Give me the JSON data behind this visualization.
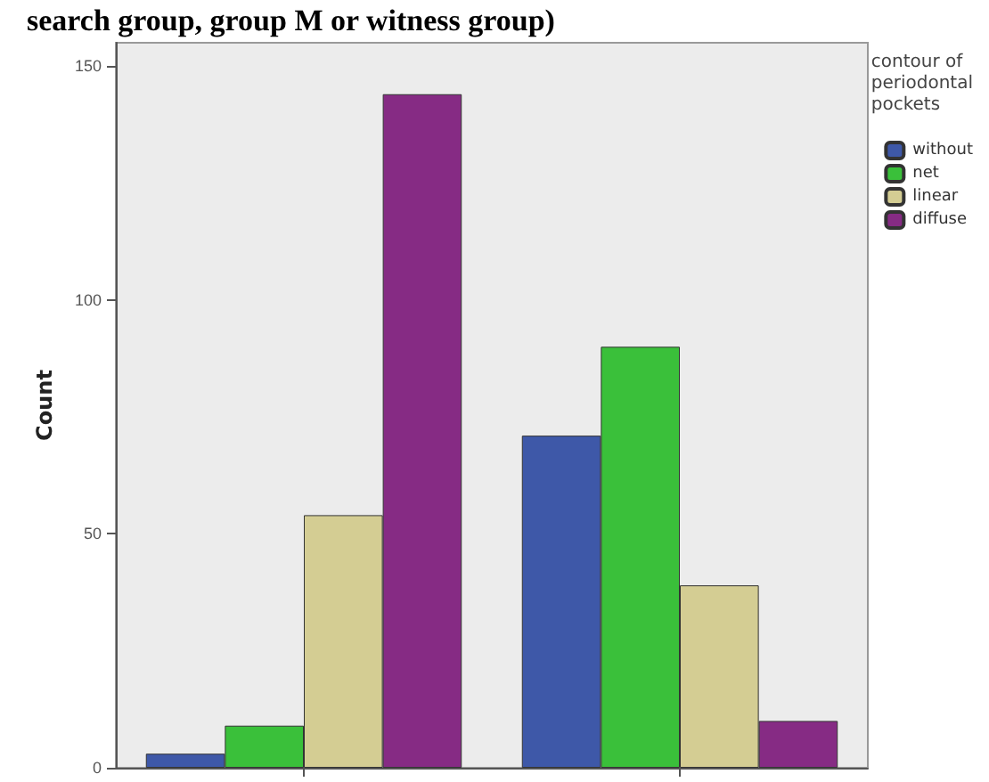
{
  "chart_data": {
    "type": "bar",
    "title": "search group, group M or witness group)",
    "ylabel": "Count",
    "legend_title": "contour of\nperiodontal\npockets",
    "categories": [
      null,
      null
    ],
    "series": [
      {
        "name": "without",
        "color": "#3e58a8",
        "values": [
          3,
          71
        ]
      },
      {
        "name": "net",
        "color": "#3ac03a",
        "values": [
          9,
          90
        ]
      },
      {
        "name": "linear",
        "color": "#d4cd93",
        "values": [
          54,
          39
        ]
      },
      {
        "name": "diffuse",
        "color": "#862b84",
        "values": [
          144,
          10
        ]
      }
    ],
    "ylim": [
      0,
      155
    ],
    "yticks": [
      0,
      50,
      100,
      150
    ],
    "grid": false,
    "legend": "right"
  }
}
